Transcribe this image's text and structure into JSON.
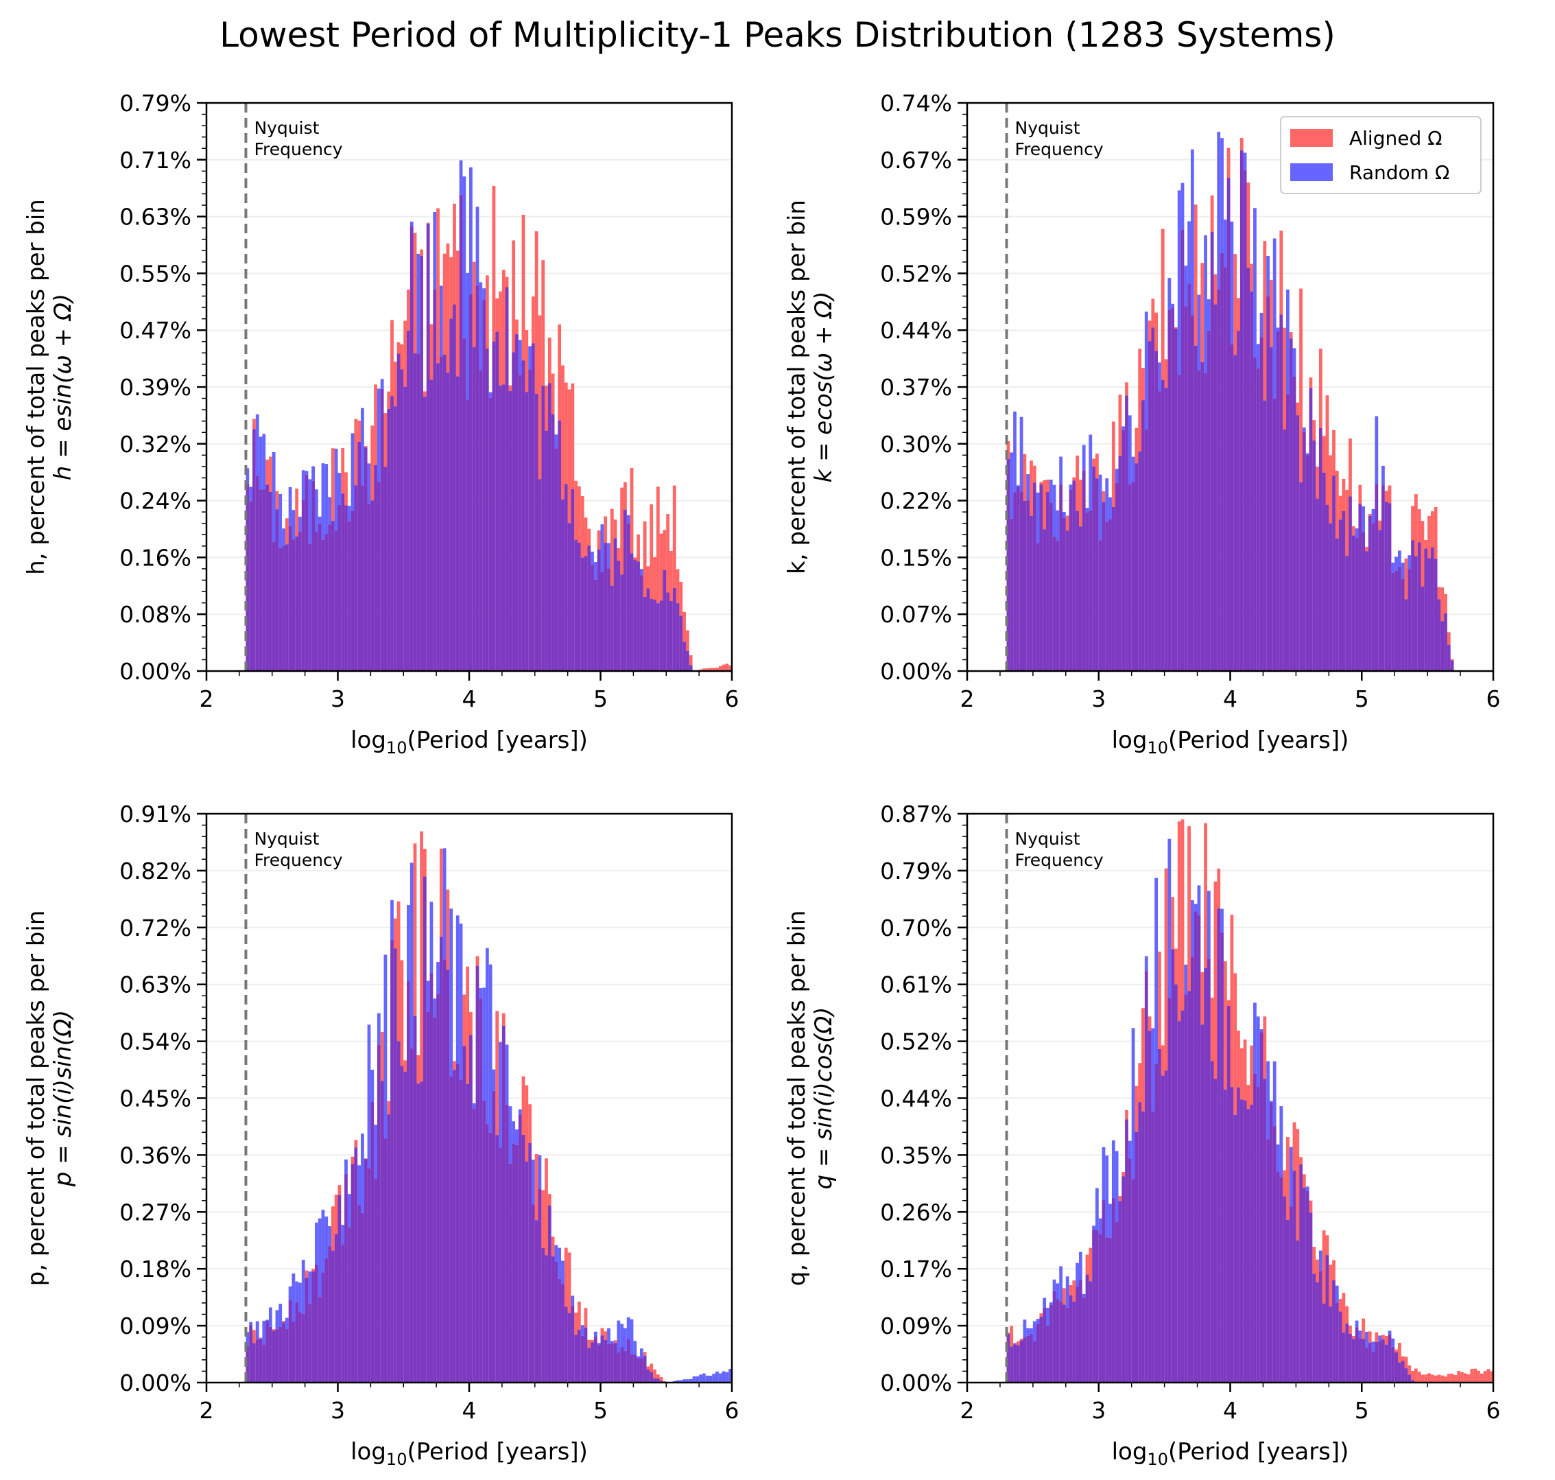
{
  "figure": {
    "title": "Lowest Period of Multiplicity-1 Peaks Distribution (1283 Systems)"
  },
  "colors": {
    "aligned": "#ff6666",
    "random": "#6666ff",
    "overlap": "#7d3ac1",
    "nyquist_line": "#777777",
    "grid": "#eeeeee"
  },
  "chart_data": [
    {
      "type": "bar",
      "id": "h",
      "xlabel": "log10(Period [years])",
      "ylabel": "h, percent of total peaks per bin",
      "ylabel_formula": "h = esin(ω + Ω)",
      "xlim": [
        2,
        6
      ],
      "xticks": [
        2,
        3,
        4,
        5,
        6
      ],
      "ylim": [
        0,
        0.79
      ],
      "yticks": [
        "0.00%",
        "0.08%",
        "0.16%",
        "0.24%",
        "0.32%",
        "0.39%",
        "0.47%",
        "0.55%",
        "0.63%",
        "0.71%",
        "0.79%"
      ],
      "nyquist_x": 2.3,
      "nyquist_label": [
        "Nyquist",
        "Frequency"
      ],
      "legend": null,
      "series": [
        {
          "name": "Aligned Ω",
          "points": [
            [
              2.3,
              0.31
            ],
            [
              2.6,
              0.2
            ],
            [
              3.0,
              0.25
            ],
            [
              3.3,
              0.33
            ],
            [
              3.5,
              0.5
            ],
            [
              3.7,
              0.52
            ],
            [
              3.9,
              0.6
            ],
            [
              4.0,
              0.5
            ],
            [
              4.2,
              0.53
            ],
            [
              4.4,
              0.5
            ],
            [
              4.5,
              0.52
            ],
            [
              4.6,
              0.45
            ],
            [
              4.75,
              0.38
            ],
            [
              4.9,
              0.18
            ],
            [
              5.0,
              0.17
            ],
            [
              5.1,
              0.2
            ],
            [
              5.2,
              0.28
            ],
            [
              5.3,
              0.16
            ],
            [
              5.4,
              0.2
            ],
            [
              5.55,
              0.23
            ],
            [
              5.7,
              0.0
            ],
            [
              6.0,
              0.01
            ]
          ]
        },
        {
          "name": "Random Ω",
          "points": [
            [
              2.3,
              0.33
            ],
            [
              2.6,
              0.2
            ],
            [
              3.0,
              0.26
            ],
            [
              3.3,
              0.33
            ],
            [
              3.5,
              0.52
            ],
            [
              3.7,
              0.53
            ],
            [
              3.9,
              0.56
            ],
            [
              4.05,
              0.6
            ],
            [
              4.2,
              0.5
            ],
            [
              4.4,
              0.43
            ],
            [
              4.5,
              0.38
            ],
            [
              4.6,
              0.33
            ],
            [
              4.75,
              0.28
            ],
            [
              4.9,
              0.17
            ],
            [
              5.0,
              0.16
            ],
            [
              5.1,
              0.16
            ],
            [
              5.2,
              0.19
            ],
            [
              5.3,
              0.13
            ],
            [
              5.4,
              0.13
            ],
            [
              5.55,
              0.11
            ],
            [
              5.7,
              0.0
            ],
            [
              6.0,
              0.0
            ]
          ]
        }
      ]
    },
    {
      "type": "bar",
      "id": "k",
      "xlabel": "log10(Period [years])",
      "ylabel": "k, percent of total peaks per bin",
      "ylabel_formula": "k = ecos(ω + Ω)",
      "xlim": [
        2,
        6
      ],
      "xticks": [
        2,
        3,
        4,
        5,
        6
      ],
      "ylim": [
        0,
        0.74
      ],
      "yticks": [
        "0.00%",
        "0.07%",
        "0.15%",
        "0.22%",
        "0.30%",
        "0.37%",
        "0.44%",
        "0.52%",
        "0.59%",
        "0.67%",
        "0.74%"
      ],
      "nyquist_x": 2.3,
      "nyquist_label": [
        "Nyquist",
        "Frequency"
      ],
      "legend": {
        "position": "upper right",
        "entries": [
          "Aligned Ω",
          "Random Ω"
        ]
      },
      "series": [
        {
          "name": "Aligned Ω",
          "points": [
            [
              2.3,
              0.27
            ],
            [
              2.6,
              0.21
            ],
            [
              3.0,
              0.23
            ],
            [
              3.3,
              0.33
            ],
            [
              3.5,
              0.46
            ],
            [
              3.7,
              0.5
            ],
            [
              3.9,
              0.55
            ],
            [
              4.05,
              0.58
            ],
            [
              4.2,
              0.5
            ],
            [
              4.4,
              0.48
            ],
            [
              4.5,
              0.42
            ],
            [
              4.6,
              0.36
            ],
            [
              4.75,
              0.32
            ],
            [
              4.9,
              0.26
            ],
            [
              5.0,
              0.19
            ],
            [
              5.1,
              0.19
            ],
            [
              5.2,
              0.2
            ],
            [
              5.3,
              0.14
            ],
            [
              5.4,
              0.18
            ],
            [
              5.55,
              0.2
            ],
            [
              5.7,
              0.0
            ],
            [
              6.0,
              0.0
            ]
          ]
        },
        {
          "name": "Random Ω",
          "points": [
            [
              2.3,
              0.3
            ],
            [
              2.6,
              0.21
            ],
            [
              3.0,
              0.25
            ],
            [
              3.3,
              0.32
            ],
            [
              3.5,
              0.49
            ],
            [
              3.7,
              0.55
            ],
            [
              3.9,
              0.56
            ],
            [
              4.05,
              0.55
            ],
            [
              4.2,
              0.5
            ],
            [
              4.4,
              0.42
            ],
            [
              4.5,
              0.36
            ],
            [
              4.6,
              0.31
            ],
            [
              4.75,
              0.25
            ],
            [
              4.9,
              0.2
            ],
            [
              5.0,
              0.17
            ],
            [
              5.1,
              0.28
            ],
            [
              5.2,
              0.2
            ],
            [
              5.3,
              0.12
            ],
            [
              5.4,
              0.14
            ],
            [
              5.55,
              0.15
            ],
            [
              5.7,
              0.0
            ],
            [
              6.0,
              0.0
            ]
          ]
        }
      ]
    },
    {
      "type": "bar",
      "id": "p",
      "xlabel": "log10(Period [years])",
      "ylabel": "p, percent of total peaks per bin",
      "ylabel_formula": "p = sin(i)sin(Ω)",
      "xlim": [
        2,
        6
      ],
      "xticks": [
        2,
        3,
        4,
        5,
        6
      ],
      "ylim": [
        0,
        0.91
      ],
      "yticks": [
        "0.00%",
        "0.09%",
        "0.18%",
        "0.27%",
        "0.36%",
        "0.45%",
        "0.54%",
        "0.63%",
        "0.72%",
        "0.82%",
        "0.91%"
      ],
      "nyquist_x": 2.3,
      "nyquist_label": [
        "Nyquist",
        "Frequency"
      ],
      "legend": null,
      "series": [
        {
          "name": "Aligned Ω",
          "points": [
            [
              2.3,
              0.07
            ],
            [
              2.5,
              0.08
            ],
            [
              2.7,
              0.14
            ],
            [
              2.9,
              0.18
            ],
            [
              3.0,
              0.28
            ],
            [
              3.2,
              0.38
            ],
            [
              3.35,
              0.5
            ],
            [
              3.5,
              0.65
            ],
            [
              3.65,
              0.73
            ],
            [
              3.8,
              0.68
            ],
            [
              3.95,
              0.62
            ],
            [
              4.1,
              0.55
            ],
            [
              4.25,
              0.5
            ],
            [
              4.4,
              0.42
            ],
            [
              4.55,
              0.32
            ],
            [
              4.7,
              0.21
            ],
            [
              4.85,
              0.1
            ],
            [
              5.0,
              0.08
            ],
            [
              5.1,
              0.07
            ],
            [
              5.2,
              0.06
            ],
            [
              5.3,
              0.05
            ],
            [
              5.4,
              0.02
            ],
            [
              5.5,
              0.0
            ],
            [
              6.0,
              0.0
            ]
          ]
        },
        {
          "name": "Random Ω",
          "points": [
            [
              2.3,
              0.08
            ],
            [
              2.5,
              0.1
            ],
            [
              2.7,
              0.16
            ],
            [
              2.9,
              0.22
            ],
            [
              3.0,
              0.3
            ],
            [
              3.2,
              0.42
            ],
            [
              3.35,
              0.55
            ],
            [
              3.5,
              0.68
            ],
            [
              3.65,
              0.65
            ],
            [
              3.8,
              0.7
            ],
            [
              3.95,
              0.58
            ],
            [
              4.1,
              0.62
            ],
            [
              4.25,
              0.48
            ],
            [
              4.4,
              0.38
            ],
            [
              4.55,
              0.28
            ],
            [
              4.7,
              0.18
            ],
            [
              4.85,
              0.08
            ],
            [
              5.0,
              0.07
            ],
            [
              5.1,
              0.08
            ],
            [
              5.2,
              0.1
            ],
            [
              5.3,
              0.05
            ],
            [
              5.4,
              0.01
            ],
            [
              5.5,
              0.0
            ],
            [
              6.0,
              0.02
            ]
          ]
        }
      ]
    },
    {
      "type": "bar",
      "id": "q",
      "xlabel": "log10(Period [years])",
      "ylabel": "q, percent of total peaks per bin",
      "ylabel_formula": "q = sin(i)cos(Ω)",
      "xlim": [
        2,
        6
      ],
      "xticks": [
        2,
        3,
        4,
        5,
        6
      ],
      "ylim": [
        0,
        0.87
      ],
      "yticks": [
        "0.00%",
        "0.09%",
        "0.17%",
        "0.26%",
        "0.35%",
        "0.44%",
        "0.52%",
        "0.61%",
        "0.70%",
        "0.79%",
        "0.87%"
      ],
      "nyquist_x": 2.3,
      "nyquist_label": [
        "Nyquist",
        "Frequency"
      ],
      "legend": null,
      "series": [
        {
          "name": "Aligned Ω",
          "points": [
            [
              2.3,
              0.07
            ],
            [
              2.5,
              0.07
            ],
            [
              2.7,
              0.12
            ],
            [
              2.9,
              0.16
            ],
            [
              3.0,
              0.24
            ],
            [
              3.2,
              0.35
            ],
            [
              3.35,
              0.5
            ],
            [
              3.5,
              0.62
            ],
            [
              3.65,
              0.72
            ],
            [
              3.8,
              0.68
            ],
            [
              3.95,
              0.6
            ],
            [
              4.1,
              0.52
            ],
            [
              4.25,
              0.45
            ],
            [
              4.4,
              0.38
            ],
            [
              4.55,
              0.28
            ],
            [
              4.7,
              0.2
            ],
            [
              4.85,
              0.12
            ],
            [
              5.0,
              0.08
            ],
            [
              5.1,
              0.06
            ],
            [
              5.2,
              0.07
            ],
            [
              5.3,
              0.05
            ],
            [
              5.4,
              0.02
            ],
            [
              5.55,
              0.01
            ],
            [
              6.0,
              0.02
            ]
          ]
        },
        {
          "name": "Random Ω",
          "points": [
            [
              2.3,
              0.07
            ],
            [
              2.5,
              0.08
            ],
            [
              2.7,
              0.14
            ],
            [
              2.9,
              0.18
            ],
            [
              3.0,
              0.26
            ],
            [
              3.2,
              0.38
            ],
            [
              3.35,
              0.54
            ],
            [
              3.5,
              0.66
            ],
            [
              3.65,
              0.68
            ],
            [
              3.8,
              0.72
            ],
            [
              3.95,
              0.57
            ],
            [
              4.1,
              0.55
            ],
            [
              4.25,
              0.42
            ],
            [
              4.4,
              0.36
            ],
            [
              4.55,
              0.26
            ],
            [
              4.7,
              0.17
            ],
            [
              4.85,
              0.1
            ],
            [
              5.0,
              0.07
            ],
            [
              5.1,
              0.07
            ],
            [
              5.2,
              0.08
            ],
            [
              5.3,
              0.03
            ],
            [
              5.4,
              0.0
            ],
            [
              5.55,
              0.0
            ],
            [
              6.0,
              0.0
            ]
          ]
        }
      ]
    }
  ]
}
